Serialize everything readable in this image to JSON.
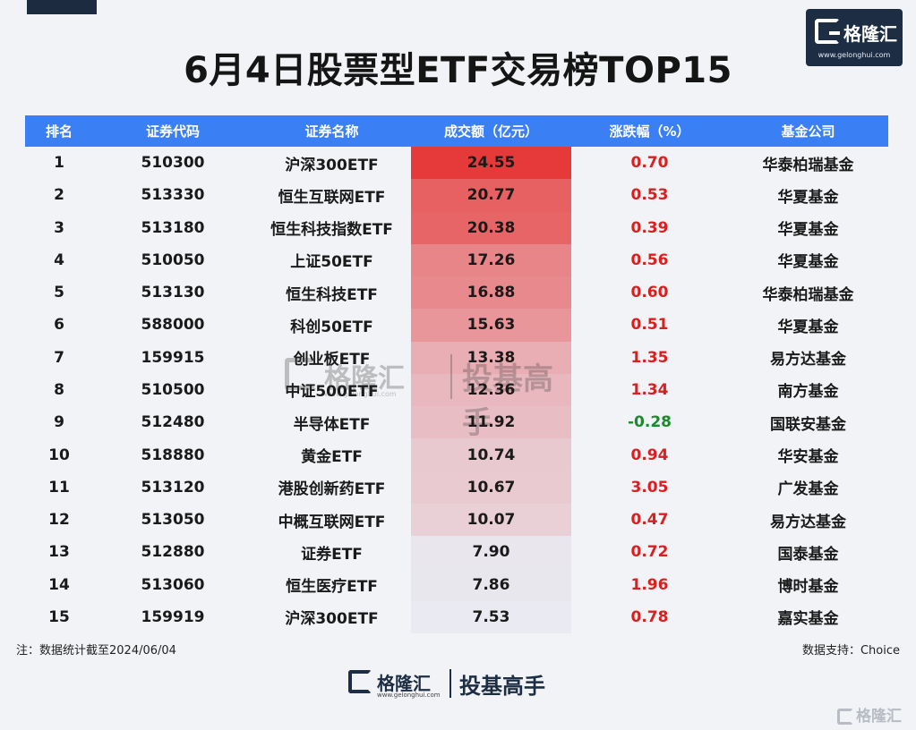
{
  "title": "6月4日股票型ETF交易榜TOP15",
  "brand": {
    "name": "格隆汇",
    "url": "www.gelonghui.com",
    "slogan": "投基高手"
  },
  "table": {
    "headers": [
      "排名",
      "证券代码",
      "证券名称",
      "成交额（亿元）",
      "涨跌幅（%）",
      "基金公司"
    ],
    "rows": [
      {
        "rank": "1",
        "code": "510300",
        "name": "沪深300ETF",
        "amount": "24.55",
        "change": "0.70",
        "company": "华泰柏瑞基金"
      },
      {
        "rank": "2",
        "code": "513330",
        "name": "恒生互联网ETF",
        "amount": "20.77",
        "change": "0.53",
        "company": "华夏基金"
      },
      {
        "rank": "3",
        "code": "513180",
        "name": "恒生科技指数ETF",
        "amount": "20.38",
        "change": "0.39",
        "company": "华夏基金"
      },
      {
        "rank": "4",
        "code": "510050",
        "name": "上证50ETF",
        "amount": "17.26",
        "change": "0.56",
        "company": "华夏基金"
      },
      {
        "rank": "5",
        "code": "513130",
        "name": "恒生科技ETF",
        "amount": "16.88",
        "change": "0.60",
        "company": "华泰柏瑞基金"
      },
      {
        "rank": "6",
        "code": "588000",
        "name": "科创50ETF",
        "amount": "15.63",
        "change": "0.51",
        "company": "华夏基金"
      },
      {
        "rank": "7",
        "code": "159915",
        "name": "创业板ETF",
        "amount": "13.38",
        "change": "1.35",
        "company": "易方达基金"
      },
      {
        "rank": "8",
        "code": "510500",
        "name": "中证500ETF",
        "amount": "12.36",
        "change": "1.34",
        "company": "南方基金"
      },
      {
        "rank": "9",
        "code": "512480",
        "name": "半导体ETF",
        "amount": "11.92",
        "change": "-0.28",
        "company": "国联安基金"
      },
      {
        "rank": "10",
        "code": "518880",
        "name": "黄金ETF",
        "amount": "10.74",
        "change": "0.94",
        "company": "华安基金"
      },
      {
        "rank": "11",
        "code": "513120",
        "name": "港股创新药ETF",
        "amount": "10.67",
        "change": "3.05",
        "company": "广发基金"
      },
      {
        "rank": "12",
        "code": "513050",
        "name": "中概互联网ETF",
        "amount": "10.07",
        "change": "0.47",
        "company": "易方达基金"
      },
      {
        "rank": "13",
        "code": "512880",
        "name": "证券ETF",
        "amount": "7.90",
        "change": "0.72",
        "company": "国泰基金"
      },
      {
        "rank": "14",
        "code": "513060",
        "name": "恒生医疗ETF",
        "amount": "7.86",
        "change": "1.96",
        "company": "博时基金"
      },
      {
        "rank": "15",
        "code": "159919",
        "name": "沪深300ETF",
        "amount": "7.53",
        "change": "0.78",
        "company": "嘉实基金"
      }
    ]
  },
  "footer": {
    "note": "注：数据统计截至2024/06/04",
    "source": "数据支持：Choice"
  },
  "colors": {
    "header_bg": "#3a7ff3",
    "heat_max": "#e63a3a",
    "heat_min": "#e9eaf2",
    "positive": "#d91f1f",
    "negative": "#1c8a2c"
  }
}
